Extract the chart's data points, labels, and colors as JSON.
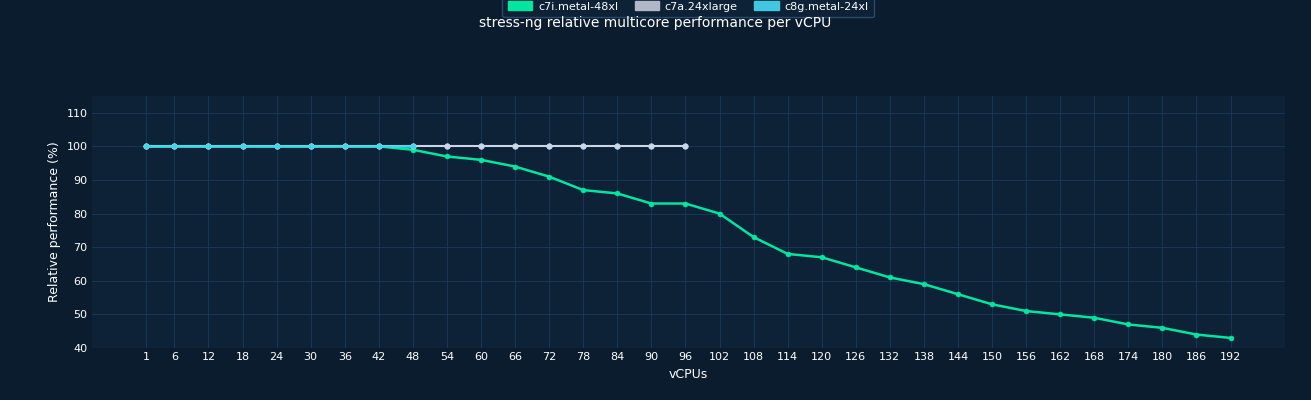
{
  "title": "stress-ng relative multicore performance per vCPU",
  "xlabel": "vCPUs",
  "ylabel": "Relative performance (%)",
  "background_color": "#0b1c2e",
  "plot_bg_color": "#0d2137",
  "grid_color": "#1a3a5c",
  "text_color": "#ffffff",
  "ylim": [
    40,
    115
  ],
  "yticks": [
    40,
    50,
    60,
    70,
    80,
    90,
    100,
    110
  ],
  "xticks": [
    1,
    6,
    12,
    18,
    24,
    30,
    36,
    42,
    48,
    54,
    60,
    66,
    72,
    78,
    84,
    90,
    96,
    102,
    108,
    114,
    120,
    126,
    132,
    138,
    144,
    150,
    156,
    162,
    168,
    174,
    180,
    186,
    192
  ],
  "series": [
    {
      "label": "c7i.metal-48xl",
      "color": "#00e5a0",
      "marker": "o",
      "markersize": 3.5,
      "markerfacecolor": "#00e5a0",
      "markeredgecolor": "#00e5a0",
      "linewidth": 1.8,
      "x": [
        1,
        6,
        12,
        18,
        24,
        30,
        36,
        42,
        48,
        54,
        60,
        66,
        72,
        78,
        84,
        90,
        96,
        102,
        108,
        114,
        120,
        126,
        132,
        138,
        144,
        150,
        156,
        162,
        168,
        174,
        180,
        186,
        192
      ],
      "y": [
        100,
        100,
        100,
        100,
        100,
        100,
        100,
        100,
        99,
        97,
        96,
        94,
        91,
        87,
        86,
        83,
        83,
        80,
        73,
        68,
        67,
        64,
        61,
        59,
        56,
        53,
        51,
        50,
        49,
        47,
        46,
        44,
        43
      ]
    },
    {
      "label": "c7a.24xlarge",
      "color": "#c8d8e8",
      "marker": "o",
      "markersize": 4,
      "markerfacecolor": "#c8d8e8",
      "markeredgecolor": "#c8d8e8",
      "linewidth": 1.5,
      "x": [
        1,
        6,
        12,
        18,
        24,
        30,
        36,
        42,
        48,
        54,
        60,
        66,
        72,
        78,
        84,
        90,
        96
      ],
      "y": [
        100,
        100,
        100,
        100,
        100,
        100,
        100,
        100,
        100,
        100,
        100,
        100,
        100,
        100,
        100,
        100,
        100
      ]
    },
    {
      "label": "c8g.metal-24xl",
      "color": "#40d8e8",
      "marker": "o",
      "markersize": 3.5,
      "markerfacecolor": "#40d8e8",
      "markeredgecolor": "#40d8e8",
      "linewidth": 1.8,
      "x": [
        1,
        6,
        12,
        18,
        24,
        30,
        36,
        42,
        48
      ],
      "y": [
        100,
        100,
        100,
        100,
        100,
        100,
        100,
        100,
        100
      ]
    }
  ],
  "legend_colors": [
    "#00e5a0",
    "#b0b8c8",
    "#40c8e0"
  ],
  "legend_labels": [
    "c7i.metal-48xl",
    "c7a.24xlarge",
    "c8g.metal-24xl"
  ],
  "legend_facecolor": "#0d2137",
  "legend_edgecolor": "#2a4a6a"
}
